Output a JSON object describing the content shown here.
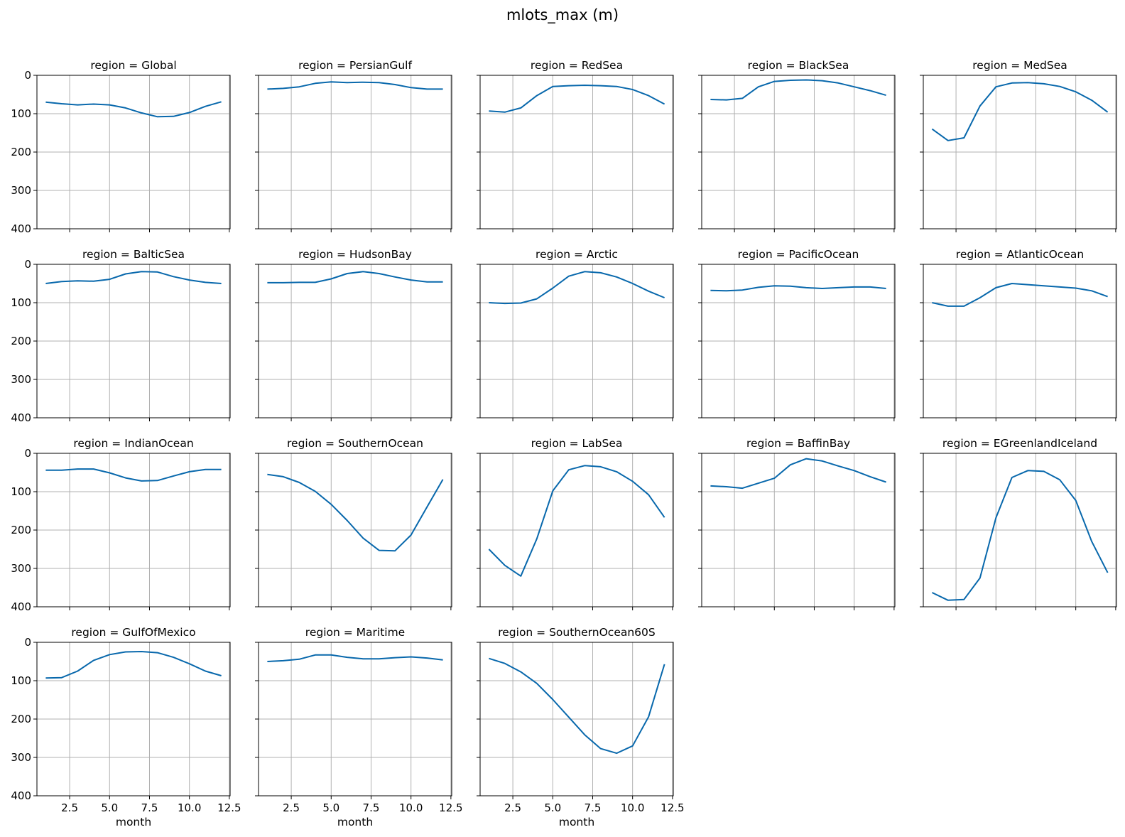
{
  "chart_data": {
    "type": "line",
    "title": "mlots_max (m)",
    "facet_label_prefix": "region = ",
    "xlabel": "month",
    "ylabel": "",
    "xlim": [
      0.45,
      12.55
    ],
    "ylim": [
      400,
      0
    ],
    "y_inverted": true,
    "grid": true,
    "line_color": "#0868ac",
    "x_ticks": [
      2.5,
      5.0,
      7.5,
      10.0,
      12.5
    ],
    "x_tick_labels": [
      "2.5",
      "5.0",
      "7.5",
      "10.0",
      "12.5"
    ],
    "y_ticks": [
      0,
      100,
      200,
      300,
      400
    ],
    "y_tick_labels": [
      "0",
      "100",
      "200",
      "300",
      "400"
    ],
    "x": [
      1,
      2,
      3,
      4,
      5,
      6,
      7,
      8,
      9,
      10,
      11,
      12
    ],
    "panels": [
      {
        "region": "Global",
        "values": [
          70,
          74,
          77,
          75,
          77,
          85,
          98,
          108,
          107,
          97,
          81,
          69
        ]
      },
      {
        "region": "PersianGulf",
        "values": [
          36,
          34,
          30,
          21,
          17,
          19,
          18,
          19,
          24,
          32,
          36,
          36
        ]
      },
      {
        "region": "RedSea",
        "values": [
          93,
          96,
          85,
          53,
          29,
          27,
          26,
          27,
          29,
          37,
          53,
          75
        ]
      },
      {
        "region": "BlackSea",
        "values": [
          63,
          64,
          60,
          30,
          16,
          13,
          12,
          14,
          20,
          30,
          40,
          52
        ]
      },
      {
        "region": "MedSea",
        "values": [
          140,
          170,
          163,
          80,
          30,
          20,
          19,
          22,
          29,
          43,
          65,
          96
        ]
      },
      {
        "region": "BalticSea",
        "values": [
          50,
          45,
          43,
          44,
          39,
          25,
          19,
          20,
          32,
          41,
          47,
          50
        ]
      },
      {
        "region": "HudsonBay",
        "values": [
          48,
          48,
          47,
          47,
          38,
          24,
          19,
          24,
          33,
          41,
          46,
          46
        ]
      },
      {
        "region": "Arctic",
        "values": [
          100,
          102,
          101,
          90,
          62,
          31,
          19,
          22,
          33,
          50,
          70,
          87
        ]
      },
      {
        "region": "PacificOcean",
        "values": [
          68,
          69,
          67,
          60,
          56,
          57,
          61,
          63,
          61,
          59,
          59,
          63
        ]
      },
      {
        "region": "AtlanticOcean",
        "values": [
          100,
          109,
          109,
          87,
          61,
          50,
          53,
          56,
          59,
          62,
          69,
          84
        ]
      },
      {
        "region": "IndianOcean",
        "values": [
          44,
          44,
          41,
          41,
          51,
          64,
          72,
          71,
          59,
          48,
          42,
          42
        ]
      },
      {
        "region": "SouthernOcean",
        "values": [
          55,
          61,
          76,
          99,
          133,
          175,
          221,
          253,
          254,
          213,
          140,
          68
        ]
      },
      {
        "region": "LabSea",
        "values": [
          250,
          292,
          320,
          223,
          98,
          43,
          32,
          35,
          48,
          73,
          108,
          167
        ]
      },
      {
        "region": "BaffinBay",
        "values": [
          85,
          87,
          91,
          78,
          65,
          30,
          14,
          20,
          33,
          45,
          61,
          75
        ]
      },
      {
        "region": "EGreenlandIceland",
        "values": [
          363,
          383,
          381,
          325,
          168,
          63,
          45,
          47,
          69,
          123,
          230,
          311
        ]
      },
      {
        "region": "GulfOfMexico",
        "values": [
          93,
          92,
          75,
          47,
          32,
          25,
          24,
          27,
          39,
          56,
          75,
          87
        ]
      },
      {
        "region": "Maritime",
        "values": [
          50,
          48,
          44,
          33,
          33,
          39,
          43,
          43,
          40,
          38,
          41,
          46
        ]
      },
      {
        "region": "SouthernOcean60S",
        "values": [
          42,
          55,
          77,
          107,
          149,
          195,
          241,
          277,
          289,
          270,
          194,
          57
        ]
      }
    ]
  }
}
